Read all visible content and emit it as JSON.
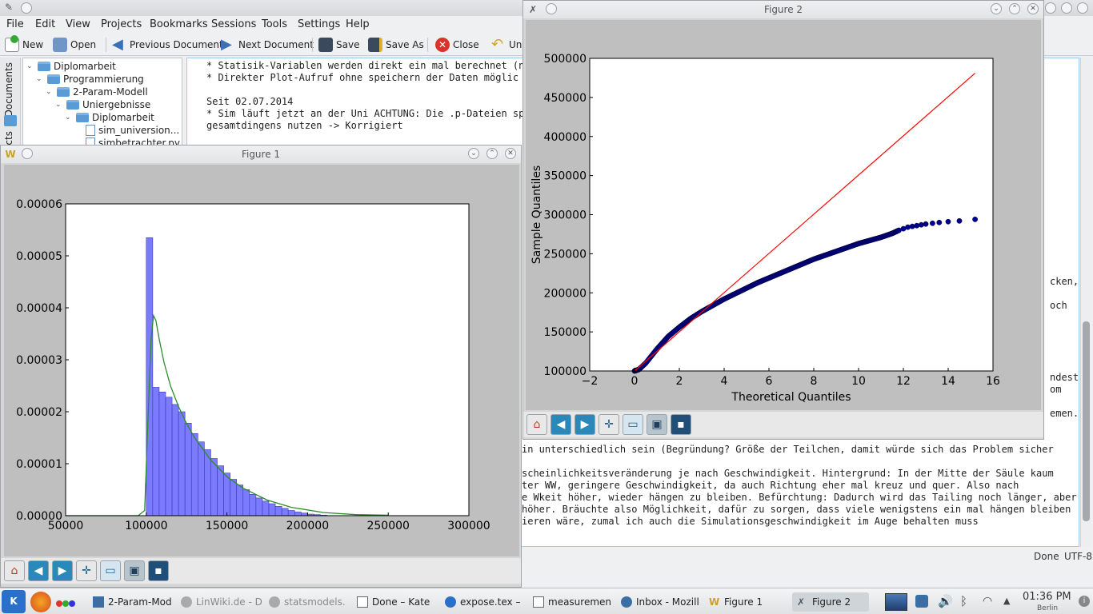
{
  "kate": {
    "menu": [
      "File",
      "Edit",
      "View",
      "Projects",
      "Bookmarks",
      "Sessions",
      "Tools",
      "Settings",
      "Help"
    ],
    "toolbar": {
      "new": "New",
      "open": "Open",
      "previous": "Previous Document",
      "next": "Next Document",
      "save": "Save",
      "save_as": "Save As",
      "close": "Close",
      "undo": "Un"
    },
    "side_tabs": [
      "Documents",
      "cts"
    ],
    "tree": [
      {
        "label": "Diplomarbeit",
        "type": "folder"
      },
      {
        "label": "Programmierung",
        "type": "folder"
      },
      {
        "label": "2-Param-Modell",
        "type": "folder"
      },
      {
        "label": "Uniergebnisse",
        "type": "folder"
      },
      {
        "label": "Diplomarbeit",
        "type": "folder"
      },
      {
        "label": "sim_universion...",
        "type": "file"
      },
      {
        "label": "simbetrachter.py",
        "type": "file"
      }
    ],
    "editor_lines_top": [
      "* Statisik-Variablen werden direkt ein mal berechnet (n",
      "* Direkter Plot-Aufruf ohne speichern der Daten möglic",
      "",
      "Seit 02.07.2014",
      "* Sim läuft jetzt an der Uni ACHTUNG: Die .p-Dateien sp",
      "gesamtdingens nutzen -> Korrigiert"
    ],
    "editor_right_fragments": [
      "cken,",
      "och",
      "ndest",
      "om",
      "emen."
    ],
    "editor_lines_bottom": [
      "in unterschiedlich sein (Begründung? Größe der Teilchen, damit würde sich das Problem sicher",
      "",
      "scheinlichkeitsveränderung je nach Geschwindigkeit. Hintergrund: In der Mitte der Säule kaum",
      "ter WW, geringere Geschwindigkeit, da auch Richtung eher mal kreuz und quer. Also nach",
      "e Wkeit höher, wieder hängen zu bleiben. Befürchtung: Dadurch wird das Tailing noch länger, aber",
      "höher. Bräuchte also Möglichkeit, dafür zu sorgen, dass viele wenigstens ein mal hängen bleiben",
      "ieren wäre, zumal ich auch die Simulationsgeschwindigkeit im Auge behalten muss"
    ],
    "status": {
      "state": "Done",
      "encoding": "UTF-8"
    }
  },
  "figure1": {
    "title": "Figure 1"
  },
  "figure2": {
    "title": "Figure 2"
  },
  "taskbar": {
    "tasks": [
      {
        "label": "2-Param-Mod",
        "faded": false
      },
      {
        "label": "LinWiki.de - D",
        "faded": true
      },
      {
        "label": "statsmodels.",
        "faded": true
      },
      {
        "label": "Done – Kate",
        "faded": false
      },
      {
        "label": "expose.tex –",
        "faded": false
      },
      {
        "label": "measuremen",
        "faded": false
      },
      {
        "label": "Inbox - Mozill",
        "faded": false
      },
      {
        "label": "Figure 1",
        "faded": false
      },
      {
        "label": "Figure 2",
        "faded": false
      }
    ],
    "clock": {
      "time": "01:36 PM",
      "place": "Berlin"
    }
  },
  "chart_data": [
    {
      "type": "bar",
      "xlim": [
        50000,
        300000
      ],
      "ylim": [
        0,
        6e-05
      ],
      "xticks": [
        "50000",
        "100000",
        "150000",
        "200000",
        "250000",
        "300000"
      ],
      "yticks": [
        "0.00000",
        "0.00001",
        "0.00002",
        "0.00003",
        "0.00004",
        "0.00005",
        "0.00006"
      ],
      "grid": false,
      "bins_x": [
        100000,
        104000,
        108000,
        112000,
        116000,
        120000,
        124000,
        128000,
        132000,
        136000,
        140000,
        144000,
        148000,
        152000,
        156000,
        160000,
        164000,
        168000,
        172000,
        176000,
        180000,
        184000,
        188000,
        192000,
        196000,
        200000,
        204000,
        208000
      ],
      "bin_width": 4000,
      "values": [
        5.35e-05,
        2.47e-05,
        2.38e-05,
        2.28e-05,
        2.14e-05,
        2e-05,
        1.78e-05,
        1.58e-05,
        1.42e-05,
        1.27e-05,
        1.1e-05,
        9.6e-06,
        8.2e-06,
        7e-06,
        5.9e-06,
        5e-06,
        4.1e-06,
        3.4e-06,
        2.8e-06,
        2.3e-06,
        1.8e-06,
        1.4e-06,
        1e-06,
        7e-07,
        5e-07,
        3e-07,
        2e-07,
        1e-07
      ],
      "bar_color": "#7b7bff",
      "fit_line": {
        "color": "#2e8b2e",
        "x": [
          50000,
          95000,
          99000,
          101000,
          103000,
          104500,
          106000,
          108000,
          111000,
          115000,
          120000,
          125000,
          130000,
          140000,
          150000,
          160000,
          175000,
          190000,
          210000,
          230000,
          250000
        ],
        "y": [
          0,
          0,
          1e-06,
          1.8e-05,
          3.4e-05,
          3.85e-05,
          3.75e-05,
          3.4e-05,
          2.95e-05,
          2.5e-05,
          2.1e-05,
          1.77e-05,
          1.5e-05,
          1.07e-05,
          7.5e-06,
          5.3e-06,
          3e-06,
          1.6e-06,
          6e-07,
          2e-07,
          1e-07
        ]
      }
    },
    {
      "type": "scatter",
      "xlabel": "Theoretical Quantiles",
      "ylabel": "Sample Quantiles",
      "xlim": [
        -2,
        16
      ],
      "ylim": [
        100000,
        500000
      ],
      "xticks": [
        "−2",
        "0",
        "2",
        "4",
        "6",
        "8",
        "10",
        "12",
        "14",
        "16"
      ],
      "yticks": [
        "100000",
        "150000",
        "200000",
        "250000",
        "300000",
        "350000",
        "400000",
        "450000",
        "500000"
      ],
      "grid": false,
      "points_color": "#00008b",
      "points": {
        "x": [
          0.0,
          0.2,
          0.5,
          1,
          1.5,
          2,
          2.5,
          3,
          3.5,
          4,
          4.5,
          5,
          5.5,
          6,
          6.5,
          7,
          7.5,
          8,
          8.5,
          9,
          9.5,
          10,
          10.5,
          11,
          11.5,
          11.8,
          12.0,
          12.2,
          12.4,
          12.6,
          12.8,
          13.0,
          13.3,
          13.6,
          14.0,
          14.5,
          15.2
        ],
        "y": [
          100000,
          102000,
          110000,
          128000,
          144000,
          156000,
          167000,
          176000,
          184000,
          192000,
          199000,
          206000,
          213000,
          219000,
          225000,
          231000,
          237000,
          243000,
          248000,
          253000,
          258000,
          263000,
          267000,
          271000,
          276000,
          280000,
          282000,
          284000,
          285000,
          286000,
          287000,
          288000,
          289000,
          290000,
          291000,
          292000,
          294000
        ]
      },
      "reference_line": {
        "color": "#ff0000",
        "x": [
          0,
          15.2
        ],
        "y": [
          100000,
          481000
        ]
      }
    }
  ]
}
